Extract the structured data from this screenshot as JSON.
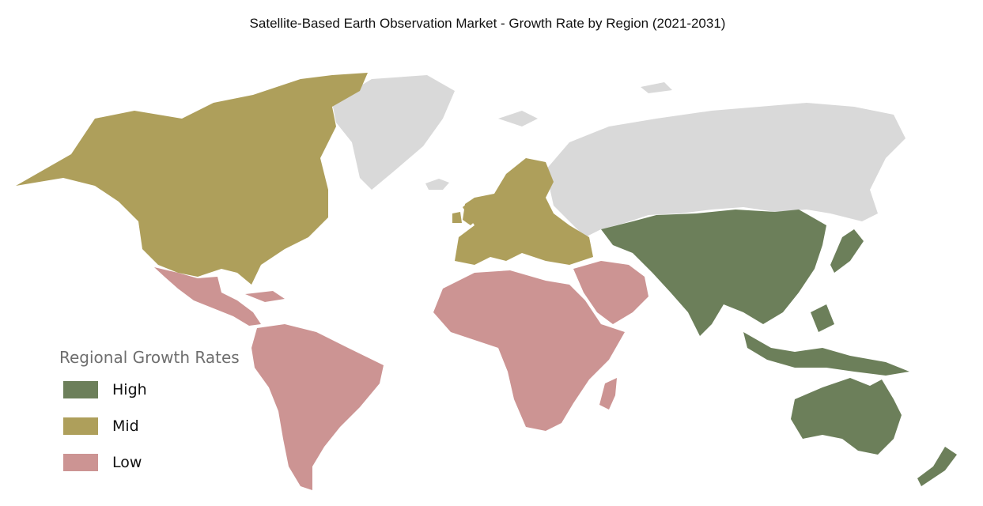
{
  "title": "Satellite-Based Earth Observation Market - Growth Rate by Region (2021-2031)",
  "legend": {
    "title": "Regional Growth Rates",
    "items": [
      {
        "label": "High",
        "color": "#6c7f5a"
      },
      {
        "label": "Mid",
        "color": "#ae9f5b"
      },
      {
        "label": "Low",
        "color": "#cc9493"
      }
    ]
  },
  "colors": {
    "high": "#6c7f5a",
    "mid": "#ae9f5b",
    "low": "#cc9493",
    "no_data": "#d9d9d9"
  },
  "regions": [
    {
      "name": "North America",
      "level": "Mid"
    },
    {
      "name": "Europe",
      "level": "Mid"
    },
    {
      "name": "Latin America",
      "level": "Low"
    },
    {
      "name": "Africa",
      "level": "Low"
    },
    {
      "name": "Middle East",
      "level": "Low"
    },
    {
      "name": "Asia Pacific",
      "level": "High"
    },
    {
      "name": "Russia",
      "level": "No data"
    },
    {
      "name": "Greenland",
      "level": "No data"
    }
  ]
}
